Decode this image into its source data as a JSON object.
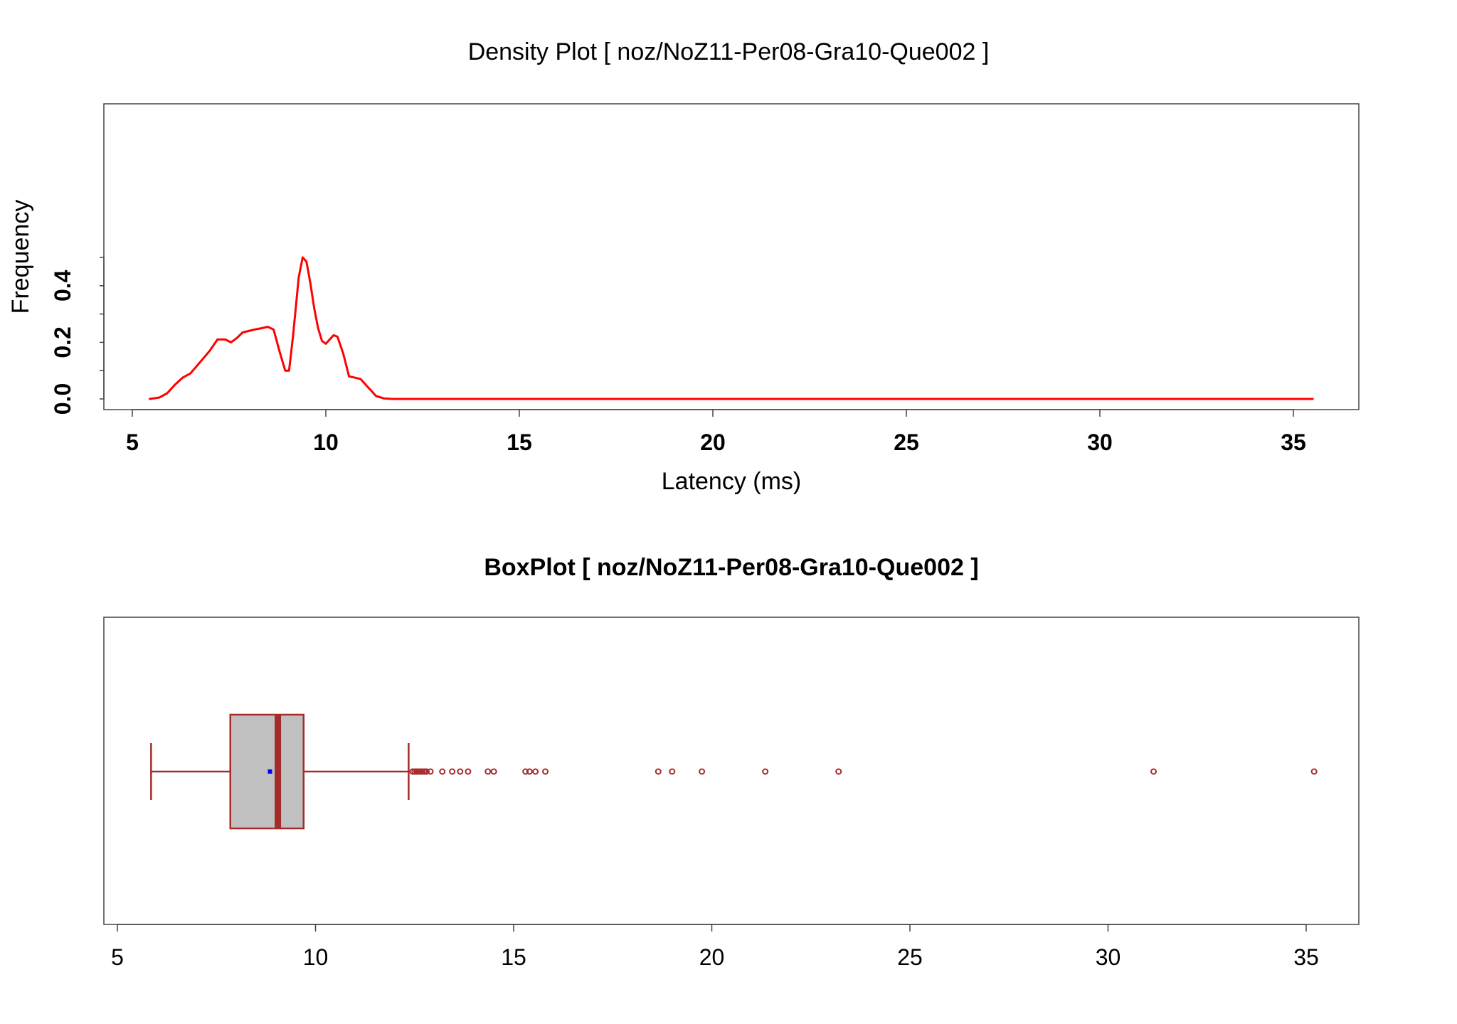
{
  "chart_data": [
    {
      "type": "line",
      "title": "Density Plot [ noz/NoZ11-Per08-Gra10-Que002 ]",
      "xlabel": "Latency (ms)",
      "ylabel": "Frequency",
      "xlim": [
        5,
        35.5
      ],
      "ylim": [
        0,
        0.5
      ],
      "xticks": [
        5,
        10,
        15,
        20,
        25,
        30,
        35
      ],
      "yticks": [
        0.0,
        0.2,
        0.4
      ],
      "ytick_labels": [
        "0.0",
        "0.2",
        "0.4"
      ],
      "grid": false,
      "line_color": "#ff0000",
      "series": [
        {
          "x": [
            5.45,
            5.7,
            5.9,
            6.1,
            6.3,
            6.5,
            6.75,
            7.0,
            7.2,
            7.4,
            7.55,
            7.7,
            7.85,
            8.0,
            8.15,
            8.35,
            8.5,
            8.65,
            8.8,
            8.95,
            9.05,
            9.15,
            9.3,
            9.4,
            9.5,
            9.6,
            9.7,
            9.8,
            9.9,
            10.0,
            10.1,
            10.2,
            10.3,
            10.45,
            10.6,
            10.75,
            10.9,
            11.1,
            11.3,
            11.5,
            11.7,
            12.0,
            12.5,
            15,
            20,
            25,
            30,
            35.5
          ],
          "y": [
            0.0,
            0.005,
            0.02,
            0.05,
            0.075,
            0.09,
            0.13,
            0.17,
            0.21,
            0.21,
            0.2,
            0.215,
            0.235,
            0.24,
            0.245,
            0.25,
            0.255,
            0.245,
            0.17,
            0.1,
            0.1,
            0.22,
            0.43,
            0.5,
            0.485,
            0.41,
            0.32,
            0.25,
            0.205,
            0.195,
            0.21,
            0.225,
            0.22,
            0.16,
            0.08,
            0.075,
            0.07,
            0.04,
            0.01,
            0.002,
            0.0,
            0.0,
            0.0,
            0.0,
            0.0,
            0.0,
            0.0,
            0.0
          ]
        }
      ]
    },
    {
      "type": "box",
      "title": "BoxPlot [ noz/NoZ11-Per08-Gra10-Que002 ]",
      "xlabel": "",
      "ylabel": "",
      "xlim": [
        5,
        35.5
      ],
      "xticks": [
        5,
        10,
        15,
        20,
        25,
        30,
        35
      ],
      "grid": false,
      "box_color": "#a52a2a",
      "box_fill": "#c0c0c0",
      "mean_color": "#0000ff",
      "whisker_low": 5.85,
      "q1": 7.85,
      "median": 9.05,
      "q3": 9.7,
      "whisker_high": 12.35,
      "mean": 8.85,
      "outliers": [
        12.45,
        12.5,
        12.55,
        12.6,
        12.65,
        12.7,
        12.75,
        12.8,
        12.9,
        13.2,
        13.45,
        13.65,
        13.85,
        14.35,
        14.5,
        15.3,
        15.4,
        15.55,
        15.8,
        18.65,
        19.0,
        19.75,
        21.35,
        23.2,
        31.15,
        35.2
      ]
    }
  ]
}
